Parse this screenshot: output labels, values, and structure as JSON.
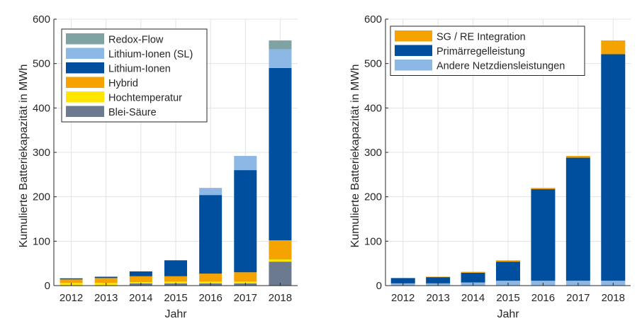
{
  "chart_data": [
    {
      "type": "bar",
      "stacked": true,
      "title": "",
      "xlabel": "Jahr",
      "ylabel": "Kumulierte Batteriekapazität in MWh",
      "ylim": [
        0,
        600
      ],
      "yticks": [
        0,
        100,
        200,
        300,
        400,
        500,
        600
      ],
      "grid": true,
      "legend_position": "top-left",
      "categories": [
        "2012",
        "2013",
        "2014",
        "2015",
        "2016",
        "2017",
        "2018"
      ],
      "series": [
        {
          "name": "Blei-Säure",
          "color": "#6b7a8f",
          "values": [
            0,
            0,
            5,
            5,
            5,
            5,
            54
          ]
        },
        {
          "name": "Hochtemperatur",
          "color": "#ffe500",
          "values": [
            6,
            6,
            3,
            4,
            4,
            4,
            5
          ]
        },
        {
          "name": "Hybrid",
          "color": "#f5a300",
          "values": [
            8,
            11,
            13,
            12,
            18,
            21,
            43
          ]
        },
        {
          "name": "Lithium-Ionen",
          "color": "#004f9f",
          "values": [
            2,
            3,
            11,
            36,
            177,
            230,
            388
          ]
        },
        {
          "name": "Lithium-Ionen (SL)",
          "color": "#8db8e6",
          "values": [
            1,
            0,
            0,
            0,
            16,
            32,
            42
          ]
        },
        {
          "name": "Redox-Flow",
          "color": "#7fa3a2",
          "values": [
            0,
            0,
            0,
            0,
            0,
            0,
            20
          ]
        }
      ],
      "legend_order": [
        "Redox-Flow",
        "Lithium-Ionen (SL)",
        "Lithium-Ionen",
        "Hybrid",
        "Hochtemperatur",
        "Blei-Säure"
      ]
    },
    {
      "type": "bar",
      "stacked": true,
      "title": "",
      "xlabel": "Jahr",
      "ylabel": "Kumulierte Batteriekapazität in MWh",
      "ylim": [
        0,
        600
      ],
      "yticks": [
        0,
        100,
        200,
        300,
        400,
        500,
        600
      ],
      "grid": true,
      "legend_position": "top-left",
      "categories": [
        "2012",
        "2013",
        "2014",
        "2015",
        "2016",
        "2017",
        "2018"
      ],
      "series": [
        {
          "name": "Andere Netzdiensleistungen",
          "color": "#8db8e6",
          "values": [
            5,
            5,
            7,
            11,
            11,
            11,
            11
          ]
        },
        {
          "name": "Primärregelleistung",
          "color": "#004f9f",
          "values": [
            12,
            14,
            22,
            43,
            206,
            277,
            510
          ]
        },
        {
          "name": "SG / RE Integration",
          "color": "#f5a300",
          "values": [
            0,
            1,
            2,
            3,
            3,
            4,
            31
          ]
        }
      ],
      "legend_order": [
        "SG / RE Integration",
        "Primärregelleistung",
        "Andere Netzdiensleistungen"
      ]
    }
  ]
}
